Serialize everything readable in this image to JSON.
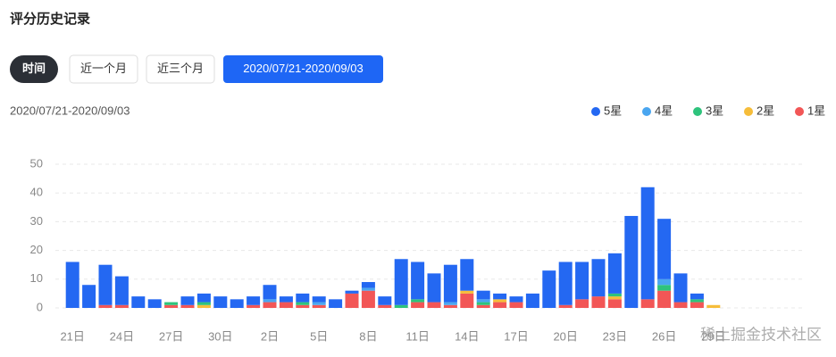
{
  "header": {
    "title": "评分历史记录"
  },
  "filters": {
    "label": "时间",
    "options": [
      "近一个月",
      "近三个月",
      "2020/07/21-2020/09/03"
    ]
  },
  "chart_data": {
    "type": "bar",
    "stacked": true,
    "subtitle": "2020/07/21-2020/09/03",
    "legend_position": "top-right",
    "grid": true,
    "categories": [
      "21日",
      null,
      null,
      "24日",
      null,
      null,
      "27日",
      null,
      null,
      "30日",
      null,
      null,
      "2日",
      null,
      null,
      "5日",
      null,
      null,
      "8日",
      null,
      null,
      "11日",
      null,
      null,
      "14日",
      null,
      null,
      "17日",
      null,
      null,
      "20日",
      null,
      null,
      "23日",
      null,
      null,
      "26日",
      null,
      null,
      "29日",
      null,
      null,
      null,
      null,
      null
    ],
    "series": [
      {
        "name": "5星",
        "color": "#2468f2",
        "values": [
          16,
          8,
          14,
          10,
          4,
          3,
          0,
          3,
          3,
          4,
          3,
          3,
          5,
          2,
          3,
          2,
          3,
          1,
          2,
          3,
          16,
          13,
          10,
          13,
          11,
          3,
          2,
          2,
          5,
          13,
          15,
          13,
          13,
          14,
          32,
          39,
          21,
          10,
          2,
          0,
          0,
          0,
          0,
          0,
          0
        ]
      },
      {
        "name": "4星",
        "color": "#4aa6f0",
        "values": [
          0,
          0,
          0,
          0,
          0,
          0,
          0,
          0,
          0,
          0,
          0,
          0,
          1,
          0,
          0,
          1,
          0,
          0,
          1,
          0,
          0,
          0,
          0,
          1,
          0,
          1,
          0,
          0,
          0,
          0,
          0,
          0,
          0,
          0,
          0,
          0,
          2,
          0,
          0,
          0,
          0,
          0,
          0,
          0,
          0
        ]
      },
      {
        "name": "3星",
        "color": "#2ec37c",
        "values": [
          0,
          0,
          0,
          0,
          0,
          0,
          1,
          0,
          1,
          0,
          0,
          0,
          0,
          0,
          1,
          0,
          0,
          0,
          0,
          0,
          1,
          1,
          0,
          0,
          0,
          1,
          0,
          0,
          0,
          0,
          0,
          0,
          0,
          1,
          0,
          0,
          2,
          0,
          1,
          0,
          0,
          0,
          0,
          0,
          0
        ]
      },
      {
        "name": "2星",
        "color": "#f6bd3a",
        "values": [
          0,
          0,
          0,
          0,
          0,
          0,
          0,
          0,
          1,
          0,
          0,
          0,
          0,
          0,
          0,
          0,
          0,
          0,
          0,
          0,
          0,
          0,
          0,
          0,
          1,
          0,
          1,
          0,
          0,
          0,
          0,
          0,
          0,
          1,
          0,
          0,
          0,
          0,
          0,
          1,
          0,
          0,
          0,
          0,
          0
        ]
      },
      {
        "name": "1星",
        "color": "#f25656",
        "values": [
          0,
          0,
          1,
          1,
          0,
          0,
          1,
          1,
          0,
          0,
          0,
          1,
          2,
          2,
          1,
          1,
          0,
          5,
          6,
          1,
          0,
          2,
          2,
          1,
          5,
          1,
          2,
          2,
          0,
          0,
          1,
          3,
          4,
          3,
          0,
          3,
          6,
          2,
          2,
          0,
          0,
          0,
          0,
          0,
          0
        ]
      }
    ],
    "ylim": [
      0,
      50
    ],
    "yticks": [
      0,
      10,
      20,
      30,
      40,
      50
    ]
  },
  "watermark": "稀土掘金技术社区"
}
